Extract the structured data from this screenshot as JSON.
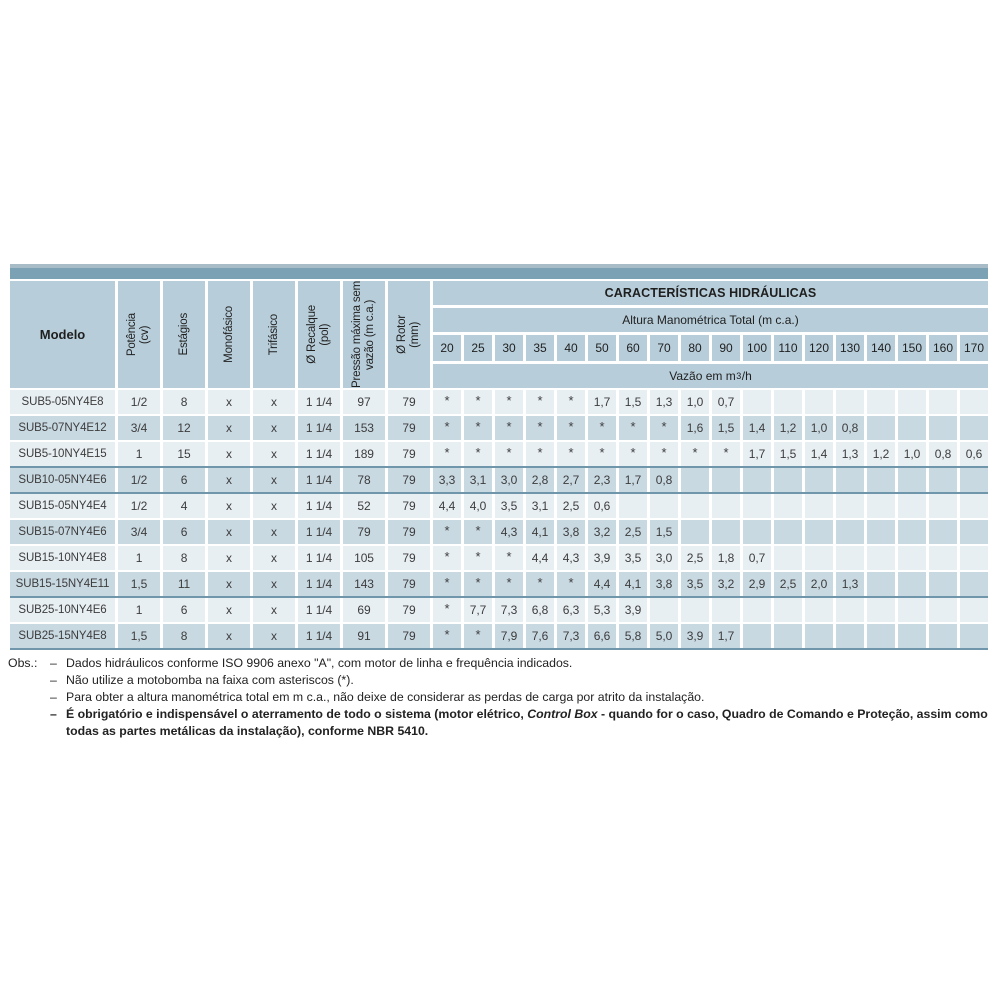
{
  "colors": {
    "top_bar": "#7ba1b5",
    "top_bar_light": "#a7bcc7",
    "header_cell": "#b7cdd9",
    "row_light": "#e8eff3",
    "row_dark": "#c9d9e2",
    "group_separator": "#6f96aa",
    "text": "#3c3c3c"
  },
  "table": {
    "header": {
      "modelo": "Modelo",
      "rotated_columns": [
        {
          "key": "potencia",
          "lines": [
            "Potência",
            "(cv)"
          ]
        },
        {
          "key": "estagios",
          "lines": [
            "Estágios"
          ]
        },
        {
          "key": "monofasico",
          "lines": [
            "Monofásico"
          ]
        },
        {
          "key": "trifasico",
          "lines": [
            "Trifásico"
          ]
        },
        {
          "key": "recalque",
          "lines": [
            "Ø Recalque",
            "(pol)"
          ]
        },
        {
          "key": "pressao-maxima",
          "lines": [
            "Pressão máxima sem",
            "vazão (m c.a.)"
          ]
        },
        {
          "key": "rotor",
          "lines": [
            "Ø Rotor",
            "(mm)"
          ]
        }
      ],
      "hydraulic_title": "CARACTERÍSTICAS HIDRÁULICAS",
      "altura_title": "Altura Manométrica Total (m c.a.)",
      "flow_heads": [
        "20",
        "25",
        "30",
        "35",
        "40",
        "50",
        "60",
        "70",
        "80",
        "90",
        "100",
        "110",
        "120",
        "130",
        "140",
        "150",
        "160",
        "170"
      ],
      "vazao": {
        "prefix": "Vazão em m",
        "sup": "3",
        "suffix": "/h"
      }
    },
    "rows": [
      {
        "modelo": "SUB5-05NY4E8",
        "potencia": "1/2",
        "estagios": "8",
        "monofasico": "x",
        "trifasico": "x",
        "recalque": "1 1/4",
        "pressao": "97",
        "rotor": "79",
        "group_start": false,
        "vazao": [
          "*",
          "*",
          "*",
          "*",
          "*",
          "1,7",
          "1,5",
          "1,3",
          "1,0",
          "0,7",
          "",
          "",
          "",
          "",
          "",
          "",
          "",
          ""
        ]
      },
      {
        "modelo": "SUB5-07NY4E12",
        "potencia": "3/4",
        "estagios": "12",
        "monofasico": "x",
        "trifasico": "x",
        "recalque": "1 1/4",
        "pressao": "153",
        "rotor": "79",
        "group_start": false,
        "vazao": [
          "*",
          "*",
          "*",
          "*",
          "*",
          "*",
          "*",
          "*",
          "1,6",
          "1,5",
          "1,4",
          "1,2",
          "1,0",
          "0,8",
          "",
          "",
          "",
          ""
        ]
      },
      {
        "modelo": "SUB5-10NY4E15",
        "potencia": "1",
        "estagios": "15",
        "monofasico": "x",
        "trifasico": "x",
        "recalque": "1 1/4",
        "pressao": "189",
        "rotor": "79",
        "group_start": false,
        "vazao": [
          "*",
          "*",
          "*",
          "*",
          "*",
          "*",
          "*",
          "*",
          "*",
          "*",
          "1,7",
          "1,5",
          "1,4",
          "1,3",
          "1,2",
          "1,0",
          "0,8",
          "0,6"
        ]
      },
      {
        "modelo": "SUB10-05NY4E6",
        "potencia": "1/2",
        "estagios": "6",
        "monofasico": "x",
        "trifasico": "x",
        "recalque": "1 1/4",
        "pressao": "78",
        "rotor": "79",
        "group_start": true,
        "vazao": [
          "3,3",
          "3,1",
          "3,0",
          "2,8",
          "2,7",
          "2,3",
          "1,7",
          "0,8",
          "",
          "",
          "",
          "",
          "",
          "",
          "",
          "",
          "",
          ""
        ]
      },
      {
        "modelo": "SUB15-05NY4E4",
        "potencia": "1/2",
        "estagios": "4",
        "monofasico": "x",
        "trifasico": "x",
        "recalque": "1 1/4",
        "pressao": "52",
        "rotor": "79",
        "group_start": true,
        "vazao": [
          "4,4",
          "4,0",
          "3,5",
          "3,1",
          "2,5",
          "0,6",
          "",
          "",
          "",
          "",
          "",
          "",
          "",
          "",
          "",
          "",
          "",
          ""
        ]
      },
      {
        "modelo": "SUB15-07NY4E6",
        "potencia": "3/4",
        "estagios": "6",
        "monofasico": "x",
        "trifasico": "x",
        "recalque": "1 1/4",
        "pressao": "79",
        "rotor": "79",
        "group_start": false,
        "vazao": [
          "*",
          "*",
          "4,3",
          "4,1",
          "3,8",
          "3,2",
          "2,5",
          "1,5",
          "",
          "",
          "",
          "",
          "",
          "",
          "",
          "",
          "",
          ""
        ]
      },
      {
        "modelo": "SUB15-10NY4E8",
        "potencia": "1",
        "estagios": "8",
        "monofasico": "x",
        "trifasico": "x",
        "recalque": "1 1/4",
        "pressao": "105",
        "rotor": "79",
        "group_start": false,
        "vazao": [
          "*",
          "*",
          "*",
          "4,4",
          "4,3",
          "3,9",
          "3,5",
          "3,0",
          "2,5",
          "1,8",
          "0,7",
          "",
          "",
          "",
          "",
          "",
          "",
          ""
        ]
      },
      {
        "modelo": "SUB15-15NY4E11",
        "potencia": "1,5",
        "estagios": "11",
        "monofasico": "x",
        "trifasico": "x",
        "recalque": "1 1/4",
        "pressao": "143",
        "rotor": "79",
        "group_start": false,
        "vazao": [
          "*",
          "*",
          "*",
          "*",
          "*",
          "4,4",
          "4,1",
          "3,8",
          "3,5",
          "3,2",
          "2,9",
          "2,5",
          "2,0",
          "1,3",
          "",
          "",
          "",
          ""
        ]
      },
      {
        "modelo": "SUB25-10NY4E6",
        "potencia": "1",
        "estagios": "6",
        "monofasico": "x",
        "trifasico": "x",
        "recalque": "1 1/4",
        "pressao": "69",
        "rotor": "79",
        "group_start": true,
        "vazao": [
          "*",
          "7,7",
          "7,3",
          "6,8",
          "6,3",
          "5,3",
          "3,9",
          "",
          "",
          "",
          "",
          "",
          "",
          "",
          "",
          "",
          "",
          ""
        ]
      },
      {
        "modelo": "SUB25-15NY4E8",
        "potencia": "1,5",
        "estagios": "8",
        "monofasico": "x",
        "trifasico": "x",
        "recalque": "1 1/4",
        "pressao": "91",
        "rotor": "79",
        "group_start": false,
        "vazao": [
          "*",
          "*",
          "7,9",
          "7,6",
          "7,3",
          "6,6",
          "5,8",
          "5,0",
          "3,9",
          "1,7",
          "",
          "",
          "",
          "",
          "",
          "",
          "",
          ""
        ]
      }
    ]
  },
  "notes": {
    "label": "Obs.:",
    "dash": "–",
    "items": [
      {
        "bold": false,
        "parts": [
          {
            "t": "Dados hidráulicos conforme ISO 9906 anexo \"A\", com motor de linha e frequência indicados.",
            "italic": false
          }
        ]
      },
      {
        "bold": false,
        "parts": [
          {
            "t": "Não utilize a motobomba na faixa com asteriscos (*).",
            "italic": false
          }
        ]
      },
      {
        "bold": false,
        "parts": [
          {
            "t": "Para obter a altura manométrica total em m c.a., não deixe de considerar as perdas de carga por atrito da instalação.",
            "italic": false
          }
        ]
      },
      {
        "bold": true,
        "parts": [
          {
            "t": "É obrigatório e indispensável o aterramento de todo o sistema (motor elétrico, ",
            "italic": false
          },
          {
            "t": "Control Box",
            "italic": true
          },
          {
            "t": " - quando for o caso, Quadro de Comando e Proteção, assim como todas as partes metálicas da instalação), conforme NBR 5410.",
            "italic": false
          }
        ]
      }
    ]
  }
}
